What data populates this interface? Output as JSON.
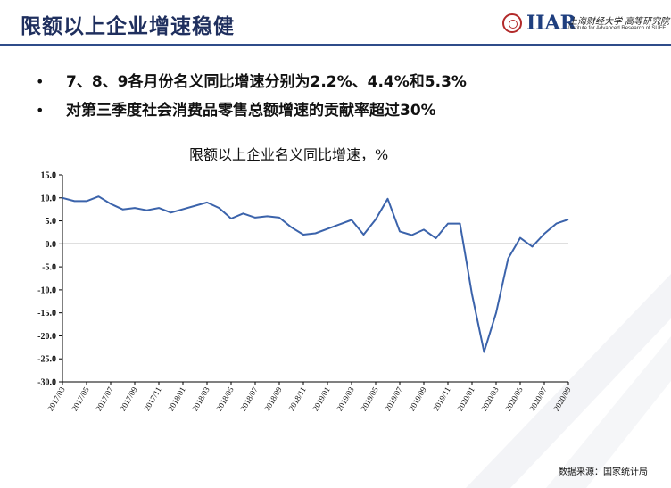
{
  "header": {
    "title": "限额以上企业增速稳健",
    "logo": {
      "abbr": "IIAR",
      "cn": "上海财经大学 高等研究院",
      "en": "Institute for Advanced Research of SUFE"
    }
  },
  "bullets": [
    "7、8、9各月份名义同比增速分别为2.2%、4.4%和5.3%",
    "对第三季度社会消费品零售总额增速的贡献率超过30%"
  ],
  "chart_data": {
    "type": "line",
    "title": "限额以上企业名义同比增速，%",
    "xlabel": "",
    "ylabel": "",
    "ylim": [
      -30,
      15
    ],
    "yticks": [
      "15.0",
      "10.0",
      "5.0",
      "0.0",
      "-5.0",
      "-10.0",
      "-15.0",
      "-20.0",
      "-25.0",
      "-30.0"
    ],
    "grid": false,
    "legend": "none",
    "x": [
      "2017/03",
      "2017/04",
      "2017/05",
      "2017/06",
      "2017/07",
      "2017/08",
      "2017/09",
      "2017/10",
      "2017/11",
      "2017/12",
      "2018/01",
      "2018/02",
      "2018/03",
      "2018/04",
      "2018/05",
      "2018/06",
      "2018/07",
      "2018/08",
      "2018/09",
      "2018/10",
      "2018/11",
      "2018/12",
      "2019/01",
      "2019/02",
      "2019/03",
      "2019/04",
      "2019/05",
      "2019/06",
      "2019/07",
      "2019/08",
      "2019/09",
      "2019/10",
      "2019/11",
      "2019/12",
      "2020/01",
      "2020/02",
      "2020/03",
      "2020/04",
      "2020/05",
      "2020/06",
      "2020/07",
      "2020/08",
      "2020/09"
    ],
    "xtick_labels": [
      "2017/03",
      "2017/05",
      "2017/07",
      "2017/09",
      "2017/11",
      "2018/01",
      "2018/03",
      "2018/05",
      "2018/07",
      "2018/09",
      "2018/11",
      "2019/01",
      "2019/03",
      "2019/05",
      "2019/07",
      "2019/09",
      "2019/11",
      "2020/01",
      "2020/03",
      "2020/05",
      "2020/07",
      "2020/09"
    ],
    "series": [
      {
        "values": [
          10.0,
          9.3,
          9.3,
          10.3,
          8.7,
          7.5,
          7.8,
          7.3,
          7.8,
          6.8,
          null,
          null,
          9.0,
          7.8,
          5.5,
          6.6,
          5.7,
          6.0,
          5.7,
          3.6,
          2.0,
          2.3,
          null,
          null,
          5.2,
          2.0,
          5.3,
          9.8,
          2.7,
          1.9,
          3.1,
          1.2,
          4.4,
          4.4,
          -11.0,
          -23.5,
          -15.0,
          -3.2,
          1.3,
          -0.6,
          2.2,
          4.4,
          5.3
        ],
        "color": "#3b63ab"
      }
    ]
  },
  "footer": {
    "source": "数据来源：国家统计局"
  },
  "colors": {
    "title": "#1f2f5e",
    "rule": "#2f4c8a",
    "line": "#3b63ab"
  }
}
